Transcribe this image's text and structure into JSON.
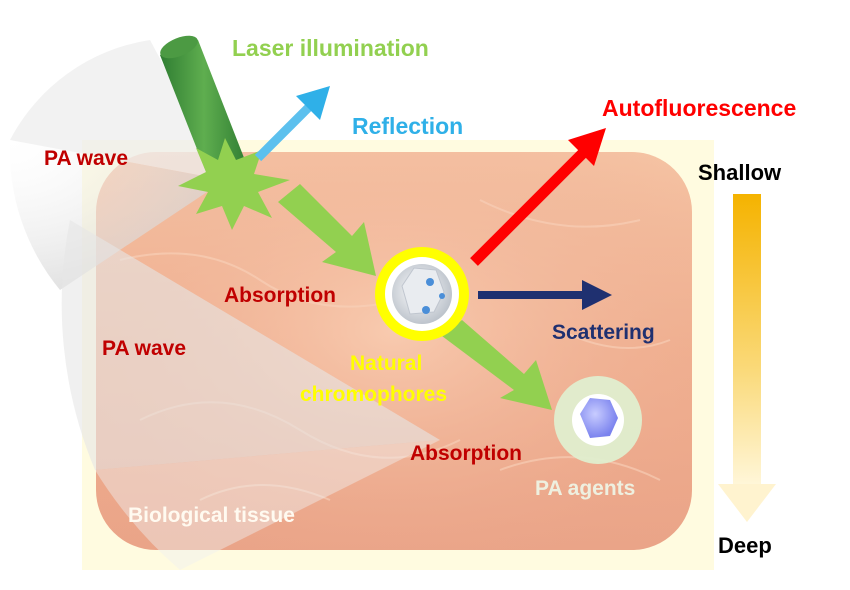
{
  "labels": {
    "laser": "Laser illumination",
    "reflection": "Reflection",
    "autofluorescence": "Autofluorescence",
    "shallow": "Shallow",
    "deep": "Deep",
    "pa_wave_top": "PA wave",
    "pa_wave_mid": "PA wave",
    "absorption_1": "Absorption",
    "absorption_2": "Absorption",
    "scattering": "Scattering",
    "natural_1": "Natural",
    "natural_2": "chromophores",
    "pa_agents": "PA agents",
    "tissue": "Biological tissue"
  },
  "colors": {
    "laser_green": "#92d050",
    "laser_beam_dark": "#3a8a3a",
    "reflection_blue": "#2fb0e8",
    "autofluorescence_red": "#ff0000",
    "absorption_red": "#c00000",
    "scattering_navy": "#1f3070",
    "chromophore_yellow": "#ffff00",
    "depth_gradient_top": "#f5b300",
    "depth_gradient_bottom": "#fff4cc"
  }
}
